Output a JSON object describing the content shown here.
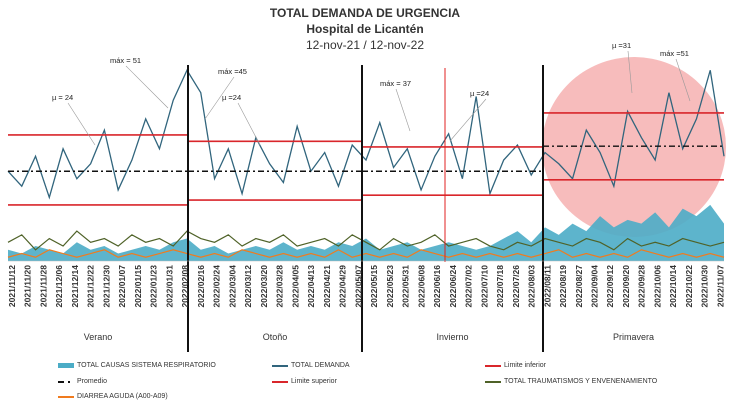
{
  "chart_data": {
    "type": "line",
    "title": "TOTAL DEMANDA DE URGENCIA",
    "subtitle": "Hospital de Licantén",
    "period": "12-nov-21  / 12-nov-22",
    "ylim": [
      0,
      56
    ],
    "x_ticks": [
      "2021/11/12",
      "2021/11/20",
      "2021/11/28",
      "2021/12/06",
      "2021/12/14",
      "2021/12/22",
      "2021/12/30",
      "2022/01/07",
      "2022/01/15",
      "2022/01/23",
      "2022/01/31",
      "2022/02/08",
      "2022/02/16",
      "2022/02/24",
      "2022/03/04",
      "2022/03/12",
      "2022/03/20",
      "2022/03/28",
      "2022/04/05",
      "2022/04/13",
      "2022/04/21",
      "2022/04/29",
      "2022/05/07",
      "2022/05/15",
      "2022/05/23",
      "2022/05/31",
      "2022/06/08",
      "2022/06/16",
      "2022/06/24",
      "2022/07/02",
      "2022/07/10",
      "2022/07/18",
      "2022/07/26",
      "2022/08/03",
      "2022/08/11",
      "2022/08/19",
      "2022/08/27",
      "2022/09/04",
      "2022/09/12",
      "2022/09/20",
      "2022/09/28",
      "2022/10/06",
      "2022/10/14",
      "2022/10/22",
      "2022/10/30",
      "2022/11/07"
    ],
    "seasons": [
      {
        "name": "Verano",
        "mean": 24,
        "upper": 33.7,
        "lower": 15,
        "annot_max": "máx = 51",
        "annot_mean": "µ = 24"
      },
      {
        "name": "Otoño",
        "mean": 24,
        "upper": 32,
        "lower": 16.3,
        "annot_max": "máx =45",
        "annot_mean": "µ =24"
      },
      {
        "name": "Invierno",
        "mean": 24,
        "upper": 30.5,
        "lower": 17.6,
        "annot_max": "máx = 37",
        "annot_mean": "µ =24"
      },
      {
        "name": "Primavera",
        "mean": 30.7,
        "upper": 39.6,
        "lower": 21.7,
        "annot_max": "máx =51",
        "annot_mean": "µ =31"
      }
    ],
    "series": [
      {
        "name": "TOTAL CAUSAS SISTEMA RESPIRATORIO",
        "color": "#4bacc6",
        "type": "area",
        "values": [
          3,
          2,
          4,
          3,
          2,
          5,
          3,
          4,
          2,
          3,
          4,
          3,
          5,
          6,
          3,
          4,
          2,
          3,
          4,
          3,
          5,
          3,
          4,
          3,
          5,
          4,
          6,
          3,
          4,
          5,
          3,
          4,
          5,
          4,
          3,
          4,
          6,
          8,
          5,
          9,
          7,
          10,
          8,
          12,
          9,
          11,
          10,
          13,
          9,
          14,
          12,
          15,
          10
        ]
      },
      {
        "name": "TOTAL DEMANDA",
        "color": "#31657d",
        "type": "line",
        "values": [
          24,
          20,
          28,
          17,
          30,
          22,
          26,
          35,
          19,
          27,
          38,
          30,
          43,
          51,
          45,
          22,
          30,
          18,
          33,
          26,
          21,
          36,
          24,
          29,
          20,
          31,
          27,
          37,
          25,
          30,
          19,
          28,
          34,
          22,
          44,
          18,
          27,
          31,
          23,
          29,
          26,
          22,
          35,
          29,
          20,
          40,
          33,
          27,
          45,
          30,
          38,
          51,
          28
        ]
      },
      {
        "name": "Limite inferior",
        "color": "#d9262b",
        "type": "line"
      },
      {
        "name": "Promedio",
        "color": "#111111",
        "type": "dash"
      },
      {
        "name": "Limite superior",
        "color": "#d9262b",
        "type": "line"
      },
      {
        "name": "TOTAL TRAUMATISMOS Y ENVENENAMIENTO",
        "color": "#4f6228",
        "type": "line",
        "values": [
          5,
          7,
          3,
          6,
          4,
          8,
          5,
          6,
          4,
          7,
          5,
          6,
          4,
          8,
          6,
          5,
          7,
          4,
          6,
          5,
          7,
          4,
          5,
          6,
          4,
          7,
          5,
          3,
          6,
          4,
          5,
          7,
          4,
          5,
          6,
          4,
          3,
          5,
          4,
          6,
          5,
          4,
          6,
          5,
          3,
          6,
          4,
          5,
          4,
          6,
          5,
          4,
          5
        ]
      },
      {
        "name": "DIARREA AGUDA (A00-A09)",
        "color": "#f07b1e",
        "type": "line",
        "values": [
          1,
          2,
          1,
          3,
          2,
          1,
          2,
          3,
          1,
          2,
          1,
          2,
          3,
          2,
          1,
          2,
          1,
          3,
          2,
          1,
          2,
          1,
          2,
          1,
          3,
          1,
          2,
          1,
          2,
          1,
          3,
          2,
          1,
          2,
          1,
          2,
          1,
          2,
          1,
          2,
          3,
          1,
          2,
          1,
          2,
          1,
          3,
          2,
          1,
          2,
          1,
          2,
          1
        ]
      }
    ]
  }
}
